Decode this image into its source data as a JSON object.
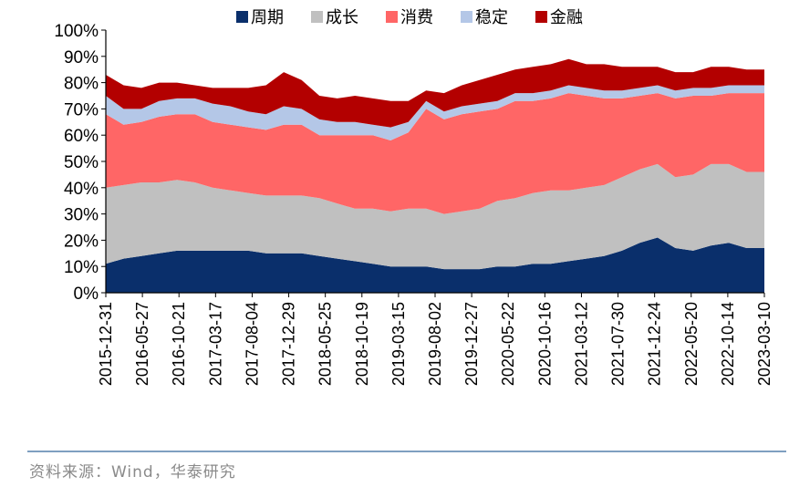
{
  "chart_data": {
    "type": "area",
    "stacked": true,
    "title": "",
    "xlabel": "",
    "ylabel": "",
    "ylim": [
      0,
      100
    ],
    "yticks": [
      "0%",
      "10%",
      "20%",
      "30%",
      "40%",
      "50%",
      "60%",
      "70%",
      "80%",
      "90%",
      "100%"
    ],
    "x_tick_labels": [
      "2015-12-31",
      "2016-05-27",
      "2016-10-21",
      "2017-03-17",
      "2017-08-04",
      "2017-12-29",
      "2018-05-25",
      "2018-10-19",
      "2019-03-15",
      "2019-08-02",
      "2019-12-27",
      "2020-05-22",
      "2020-10-16",
      "2021-03-12",
      "2021-07-30",
      "2021-12-24",
      "2022-05-20",
      "2022-10-14",
      "2023-03-10"
    ],
    "legend_position": "top",
    "x": [
      "2015-12-31",
      "2016-03-11",
      "2016-05-27",
      "2016-08-12",
      "2016-10-21",
      "2016-12-30",
      "2017-03-17",
      "2017-05-26",
      "2017-08-04",
      "2017-10-20",
      "2017-12-29",
      "2018-03-16",
      "2018-05-25",
      "2018-08-10",
      "2018-10-19",
      "2018-12-28",
      "2019-03-15",
      "2019-05-24",
      "2019-08-02",
      "2019-10-18",
      "2019-12-27",
      "2020-03-13",
      "2020-05-22",
      "2020-07-31",
      "2020-10-16",
      "2020-12-25",
      "2021-03-12",
      "2021-05-21",
      "2021-07-30",
      "2021-10-15",
      "2021-12-24",
      "2022-03-11",
      "2022-05-20",
      "2022-07-29",
      "2022-10-14",
      "2022-12-23",
      "2023-03-10",
      "2023-04-07"
    ],
    "series": [
      {
        "name": "周期",
        "color": "#0a2f6b",
        "values": [
          11,
          13,
          14,
          15,
          16,
          16,
          16,
          16,
          16,
          15,
          15,
          15,
          14,
          13,
          12,
          11,
          10,
          10,
          10,
          9,
          9,
          9,
          10,
          10,
          11,
          11,
          12,
          13,
          14,
          16,
          19,
          21,
          17,
          16,
          18,
          19,
          17,
          17
        ]
      },
      {
        "name": "成长",
        "color": "#c0c0c0",
        "values": [
          29,
          28,
          28,
          27,
          27,
          26,
          24,
          23,
          22,
          22,
          22,
          22,
          22,
          21,
          20,
          21,
          21,
          22,
          22,
          21,
          22,
          23,
          25,
          26,
          27,
          28,
          27,
          27,
          27,
          28,
          28,
          28,
          27,
          29,
          31,
          30,
          29,
          29
        ]
      },
      {
        "name": "消费",
        "color": "#ff6666",
        "values": [
          28,
          23,
          23,
          25,
          25,
          26,
          25,
          25,
          25,
          25,
          27,
          27,
          24,
          26,
          28,
          28,
          27,
          29,
          38,
          36,
          37,
          37,
          35,
          37,
          35,
          35,
          37,
          35,
          33,
          30,
          28,
          27,
          30,
          30,
          26,
          27,
          30,
          30
        ]
      },
      {
        "name": "稳定",
        "color": "#b4c7e7",
        "values": [
          7,
          6,
          5,
          6,
          6,
          6,
          7,
          7,
          6,
          6,
          7,
          6,
          6,
          5,
          5,
          4,
          5,
          4,
          3,
          3,
          3,
          3,
          3,
          3,
          3,
          3,
          3,
          3,
          3,
          3,
          3,
          3,
          3,
          3,
          3,
          3,
          3,
          3
        ]
      },
      {
        "name": "金融",
        "color": "#b30000",
        "values": [
          8,
          9,
          8,
          7,
          6,
          5,
          6,
          7,
          9,
          11,
          13,
          11,
          9,
          9,
          10,
          10,
          10,
          8,
          4,
          7,
          8,
          9,
          10,
          9,
          10,
          10,
          10,
          9,
          10,
          9,
          8,
          7,
          7,
          6,
          8,
          7,
          6,
          6
        ]
      }
    ]
  },
  "source_text": "资料来源：Wind，华泰研究"
}
